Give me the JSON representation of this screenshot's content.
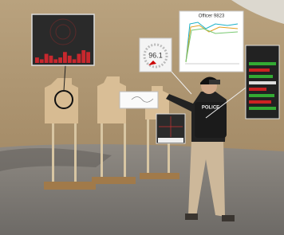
{
  "overlays": {
    "chart_title": "Officer 9823",
    "gauge_value": "96.1",
    "vest_label": "POLICE",
    "histogram": [
      3,
      2,
      5,
      4,
      2,
      3,
      6,
      4,
      2,
      5,
      7,
      6
    ]
  }
}
